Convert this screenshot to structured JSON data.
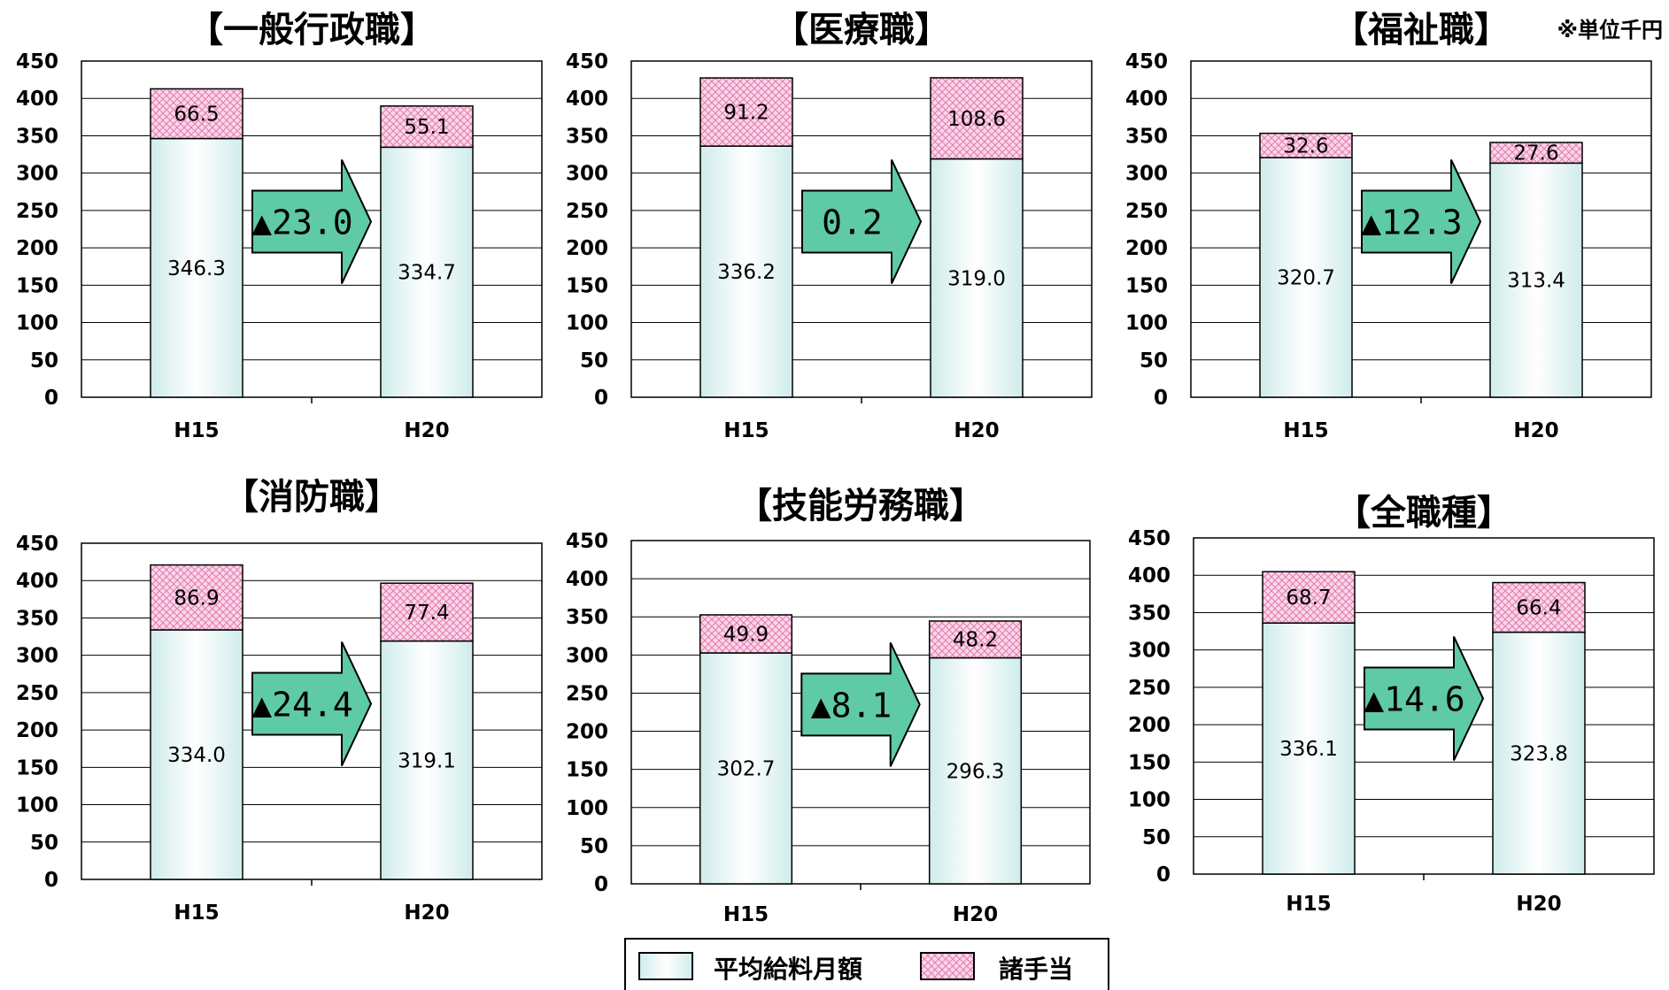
{
  "unit_note": "※単位千円",
  "colors": {
    "base_fill_top": "#cfeceb",
    "base_fill_bottom": "#ffffff",
    "allowance_fill": "#fbd6e8",
    "allowance_hatch": "#e07cb0",
    "arrow_fill": "#5fcaa6",
    "grid": "#000000"
  },
  "legend": [
    {
      "key": "base",
      "label": "平均給料月額"
    },
    {
      "key": "allowance",
      "label": "諸手当"
    }
  ],
  "chart_data": [
    {
      "type": "bar",
      "stacked": true,
      "title": "【一般行政職】",
      "categories": [
        "H15",
        "H20"
      ],
      "series": [
        {
          "name": "平均給料月額",
          "values": [
            346.3,
            334.7
          ]
        },
        {
          "name": "諸手当",
          "values": [
            66.5,
            55.1
          ]
        }
      ],
      "value_labels": {
        "base": [
          "346.3",
          "334.7"
        ],
        "allowance": [
          "66.5",
          "55.1"
        ]
      },
      "difference": "▲23.0",
      "ylim": [
        0,
        450
      ],
      "yticks": [
        0,
        50,
        100,
        150,
        200,
        250,
        300,
        350,
        400,
        450
      ],
      "grid": true
    },
    {
      "type": "bar",
      "stacked": true,
      "title": "【医療職】",
      "categories": [
        "H15",
        "H20"
      ],
      "series": [
        {
          "name": "平均給料月額",
          "values": [
            336.2,
            319.0
          ]
        },
        {
          "name": "諸手当",
          "values": [
            91.2,
            108.6
          ]
        }
      ],
      "value_labels": {
        "base": [
          "336.2",
          "319.0"
        ],
        "allowance": [
          "91.2",
          "108.6"
        ]
      },
      "difference": "0.2",
      "ylim": [
        0,
        450
      ],
      "yticks": [
        0,
        50,
        100,
        150,
        200,
        250,
        300,
        350,
        400,
        450
      ],
      "grid": true
    },
    {
      "type": "bar",
      "stacked": true,
      "title": "【福祉職】",
      "categories": [
        "H15",
        "H20"
      ],
      "series": [
        {
          "name": "平均給料月額",
          "values": [
            320.7,
            313.4
          ]
        },
        {
          "name": "諸手当",
          "values": [
            32.6,
            27.6
          ]
        }
      ],
      "value_labels": {
        "base": [
          "320.7",
          "313.4"
        ],
        "allowance": [
          "32.6",
          "27.6"
        ]
      },
      "difference": "▲12.3",
      "ylim": [
        0,
        450
      ],
      "yticks": [
        0,
        50,
        100,
        150,
        200,
        250,
        300,
        350,
        400,
        450
      ],
      "grid": true
    },
    {
      "type": "bar",
      "stacked": true,
      "title": "【消防職】",
      "categories": [
        "H15",
        "H20"
      ],
      "series": [
        {
          "name": "平均給料月額",
          "values": [
            334.0,
            319.1
          ]
        },
        {
          "name": "諸手当",
          "values": [
            86.9,
            77.4
          ]
        }
      ],
      "value_labels": {
        "base": [
          "334.0",
          "319.1"
        ],
        "allowance": [
          "86.9",
          "77.4"
        ]
      },
      "difference": "▲24.4",
      "ylim": [
        0,
        450
      ],
      "yticks": [
        0,
        50,
        100,
        150,
        200,
        250,
        300,
        350,
        400,
        450
      ],
      "grid": true
    },
    {
      "type": "bar",
      "stacked": true,
      "title": "【技能労務職】",
      "categories": [
        "H15",
        "H20"
      ],
      "series": [
        {
          "name": "平均給料月額",
          "values": [
            302.7,
            296.3
          ]
        },
        {
          "name": "諸手当",
          "values": [
            49.9,
            48.2
          ]
        }
      ],
      "value_labels": {
        "base": [
          "302.7",
          "296.3"
        ],
        "allowance": [
          "49.9",
          "48.2"
        ]
      },
      "difference": "▲8.1",
      "ylim": [
        0,
        450
      ],
      "yticks": [
        0,
        50,
        100,
        150,
        200,
        250,
        300,
        350,
        400,
        450
      ],
      "grid": true
    },
    {
      "type": "bar",
      "stacked": true,
      "title": "【全職種】",
      "categories": [
        "H15",
        "H20"
      ],
      "series": [
        {
          "name": "平均給料月額",
          "values": [
            336.1,
            323.8
          ]
        },
        {
          "name": "諸手当",
          "values": [
            68.7,
            66.4
          ]
        }
      ],
      "value_labels": {
        "base": [
          "336.1",
          "323.8"
        ],
        "allowance": [
          "68.7",
          "66.4"
        ]
      },
      "difference": "▲14.6",
      "ylim": [
        0,
        450
      ],
      "yticks": [
        0,
        50,
        100,
        150,
        200,
        250,
        300,
        350,
        400,
        450
      ],
      "grid": true
    }
  ]
}
